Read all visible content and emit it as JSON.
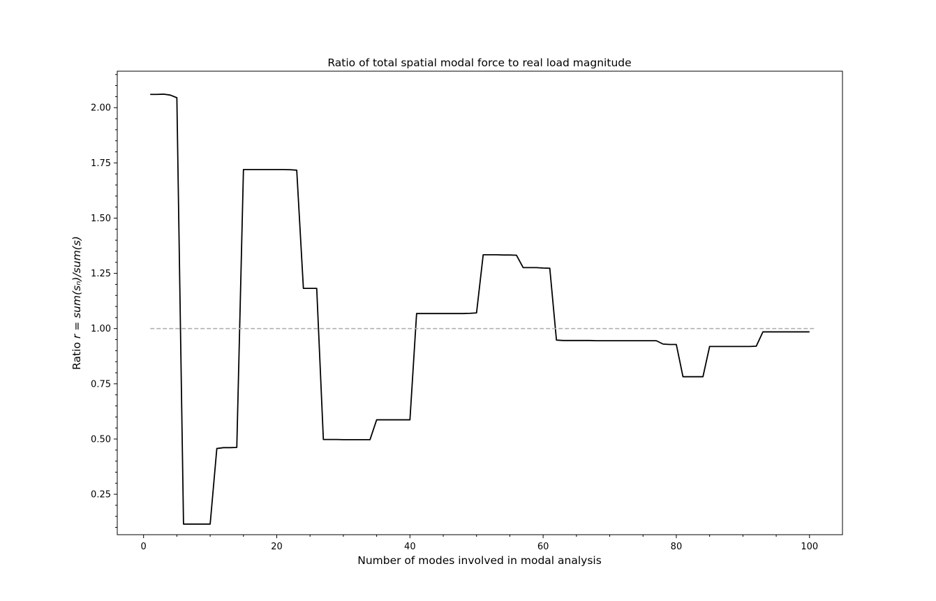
{
  "chart_data": {
    "type": "line",
    "title": "Ratio of total spatial modal force to real load magnitude",
    "xlabel": "Number of modes involved in modal analysis",
    "ylabel_prefix": "Ratio",
    "ylabel_math": "r = sum(sₙ)/sum(s)",
    "xlim": [
      -3.95,
      104.95
    ],
    "ylim": [
      0.067,
      2.165
    ],
    "x_ticks": [
      0,
      20,
      40,
      60,
      80,
      100
    ],
    "x_tick_labels": [
      "0",
      "20",
      "40",
      "60",
      "80",
      "100"
    ],
    "y_ticks": [
      0.25,
      0.5,
      0.75,
      1.0,
      1.25,
      1.5,
      1.75,
      2.0
    ],
    "y_tick_labels": [
      "0.25",
      "0.50",
      "0.75",
      "1.00",
      "1.25",
      "1.50",
      "1.75",
      "2.00"
    ],
    "grid": false,
    "legend": "none",
    "series": [
      {
        "style": "solid",
        "color": "#000000",
        "x": [
          1,
          2,
          3,
          4,
          5,
          6,
          7,
          8,
          9,
          10,
          11,
          12,
          13,
          14,
          15,
          16,
          17,
          18,
          19,
          20,
          21,
          22,
          23,
          24,
          25,
          26,
          27,
          28,
          29,
          30,
          31,
          32,
          33,
          34,
          35,
          36,
          37,
          38,
          39,
          40,
          41,
          42,
          43,
          44,
          45,
          46,
          47,
          48,
          49,
          50,
          51,
          52,
          53,
          54,
          55,
          56,
          57,
          58,
          59,
          60,
          61,
          62,
          63,
          64,
          65,
          66,
          67,
          68,
          69,
          70,
          71,
          72,
          73,
          74,
          75,
          76,
          77,
          78,
          79,
          80,
          81,
          82,
          83,
          84,
          85,
          86,
          87,
          88,
          89,
          90,
          91,
          92,
          93,
          94,
          95,
          96,
          97,
          98,
          99,
          100
        ],
        "y": [
          2.06,
          2.06,
          2.061,
          2.057,
          2.045,
          0.115,
          0.115,
          0.115,
          0.115,
          0.115,
          0.457,
          0.461,
          0.461,
          0.462,
          1.72,
          1.72,
          1.72,
          1.72,
          1.72,
          1.72,
          1.72,
          1.719,
          1.717,
          1.182,
          1.182,
          1.182,
          0.498,
          0.498,
          0.498,
          0.497,
          0.497,
          0.497,
          0.497,
          0.497,
          0.587,
          0.587,
          0.587,
          0.587,
          0.587,
          0.587,
          1.068,
          1.068,
          1.068,
          1.068,
          1.068,
          1.068,
          1.068,
          1.068,
          1.069,
          1.071,
          1.334,
          1.334,
          1.334,
          1.333,
          1.333,
          1.332,
          1.276,
          1.276,
          1.276,
          1.274,
          1.273,
          0.948,
          0.946,
          0.946,
          0.946,
          0.946,
          0.946,
          0.945,
          0.945,
          0.945,
          0.945,
          0.945,
          0.945,
          0.945,
          0.945,
          0.945,
          0.945,
          0.93,
          0.928,
          0.928,
          0.782,
          0.782,
          0.782,
          0.782,
          0.919,
          0.919,
          0.919,
          0.919,
          0.919,
          0.919,
          0.919,
          0.92,
          0.985,
          0.985,
          0.985,
          0.985,
          0.985,
          0.985,
          0.985,
          0.985
        ]
      },
      {
        "style": "dashed",
        "color": "#b0b0b0",
        "x": [
          1,
          101
        ],
        "y": [
          1.0,
          1.0
        ]
      }
    ]
  }
}
